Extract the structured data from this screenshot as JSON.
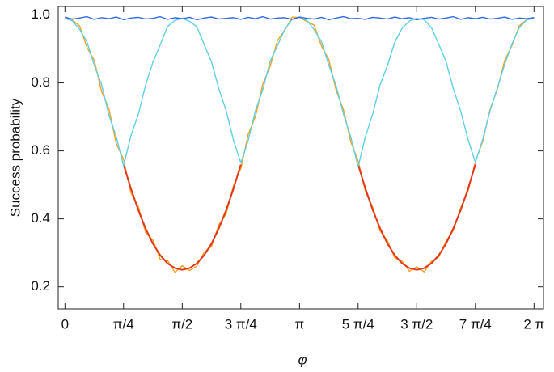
{
  "chart_data": {
    "type": "line",
    "x_label": "φ",
    "y_label": "Success probability",
    "xlim": [
      -0.09,
      6.41
    ],
    "ylim": [
      0.135,
      1.025
    ],
    "xticks": [
      {
        "value": 0,
        "label": "0"
      },
      {
        "value": 0.785,
        "label": "π/4"
      },
      {
        "value": 1.571,
        "label": "π/2"
      },
      {
        "value": 2.356,
        "label": "3 π/4"
      },
      {
        "value": 3.142,
        "label": "π"
      },
      {
        "value": 3.927,
        "label": "5 π/4"
      },
      {
        "value": 4.712,
        "label": "3 π/2"
      },
      {
        "value": 5.498,
        "label": "7 π/4"
      },
      {
        "value": 6.283,
        "label": "2 π"
      }
    ],
    "yticks": [
      0.2,
      0.4,
      0.6,
      0.8,
      {
        "value": 1,
        "label": "1.0"
      }
    ],
    "grid": false,
    "x": [
      0,
      0.098,
      0.196,
      0.295,
      0.393,
      0.491,
      0.589,
      0.687,
      0.785,
      0.884,
      0.982,
      1.08,
      1.178,
      1.276,
      1.374,
      1.473,
      1.571,
      1.669,
      1.767,
      1.865,
      1.963,
      2.062,
      2.16,
      2.258,
      2.356,
      2.454,
      2.553,
      2.651,
      2.749,
      2.847,
      2.945,
      3.043,
      3.142,
      3.24,
      3.338,
      3.436,
      3.534,
      3.632,
      3.731,
      3.829,
      3.927,
      4.025,
      4.123,
      4.222,
      4.32,
      4.418,
      4.516,
      4.614,
      4.712,
      4.811,
      4.909,
      5.007,
      5.105,
      5.203,
      5.301,
      5.4,
      5.498,
      5.596,
      5.694,
      5.792,
      5.89,
      5.989,
      6.087,
      6.185,
      6.283
    ],
    "series": [
      {
        "color": "#f5a020",
        "values": [
          0.995,
          0.985,
          0.968,
          0.905,
          0.866,
          0.775,
          0.724,
          0.622,
          0.575,
          0.476,
          0.437,
          0.36,
          0.338,
          0.281,
          0.278,
          0.243,
          0.262,
          0.248,
          0.261,
          0.302,
          0.318,
          0.383,
          0.415,
          0.498,
          0.548,
          0.648,
          0.702,
          0.797,
          0.849,
          0.925,
          0.955,
          0.994,
          0.992,
          0.981,
          0.97,
          0.909,
          0.869,
          0.779,
          0.721,
          0.627,
          0.571,
          0.48,
          0.434,
          0.364,
          0.336,
          0.285,
          0.276,
          0.246,
          0.259,
          0.244,
          0.275,
          0.287,
          0.335,
          0.366,
          0.433,
          0.481,
          0.569,
          0.628,
          0.722,
          0.781,
          0.866,
          0.911,
          0.968,
          0.986,
          0.993
        ]
      },
      {
        "color": "#e2381a",
        "values": [
          null,
          null,
          null,
          null,
          null,
          null,
          null,
          null,
          0.56,
          0.489,
          0.426,
          0.372,
          0.327,
          0.293,
          0.269,
          0.255,
          0.25,
          0.255,
          0.269,
          0.293,
          0.327,
          0.372,
          0.426,
          0.489,
          0.56,
          null,
          null,
          null,
          null,
          null,
          null,
          null,
          null,
          null,
          null,
          null,
          null,
          null,
          null,
          null,
          0.56,
          0.489,
          0.426,
          0.372,
          0.327,
          0.293,
          0.269,
          0.255,
          0.25,
          0.255,
          0.269,
          0.293,
          0.327,
          0.372,
          0.426,
          0.489,
          0.56,
          null,
          null,
          null,
          null,
          null,
          null,
          null,
          null
        ]
      },
      {
        "color": "#5fd0e4",
        "values": [
          0.99,
          0.983,
          0.958,
          0.921,
          0.852,
          0.795,
          0.705,
          0.642,
          0.556,
          0.645,
          0.707,
          0.793,
          0.861,
          0.912,
          0.966,
          0.984,
          0.99,
          0.981,
          0.965,
          0.913,
          0.862,
          0.782,
          0.718,
          0.631,
          0.565,
          0.63,
          0.719,
          0.781,
          0.864,
          0.91,
          0.958,
          0.987,
          0.993,
          0.984,
          0.957,
          0.922,
          0.853,
          0.792,
          0.708,
          0.641,
          0.553,
          0.642,
          0.709,
          0.795,
          0.851,
          0.92,
          0.961,
          0.982,
          0.99,
          0.986,
          0.963,
          0.914,
          0.863,
          0.783,
          0.717,
          0.633,
          0.566,
          0.634,
          0.718,
          0.785,
          0.855,
          0.915,
          0.963,
          0.985,
          0.992
        ]
      },
      {
        "color": "#2d6be0",
        "values": [
          0.993,
          0.988,
          0.991,
          0.995,
          0.987,
          0.992,
          0.989,
          0.994,
          0.986,
          0.991,
          0.993,
          0.988,
          0.99,
          0.995,
          0.987,
          0.992,
          0.989,
          0.993,
          0.986,
          0.991,
          0.994,
          0.988,
          0.99,
          0.992,
          0.987,
          0.993,
          0.989,
          0.995,
          0.988,
          0.991,
          0.992,
          0.987,
          0.994,
          0.99,
          0.988,
          0.993,
          0.986,
          0.991,
          0.995,
          0.989,
          0.99,
          0.987,
          0.993,
          0.991,
          0.988,
          0.994,
          0.989,
          0.992,
          0.986,
          0.99,
          0.993,
          0.988,
          0.991,
          0.995,
          0.987,
          0.992,
          0.989,
          0.993,
          0.988,
          0.99,
          0.994,
          0.987,
          0.991,
          0.989,
          0.992
        ]
      }
    ]
  }
}
